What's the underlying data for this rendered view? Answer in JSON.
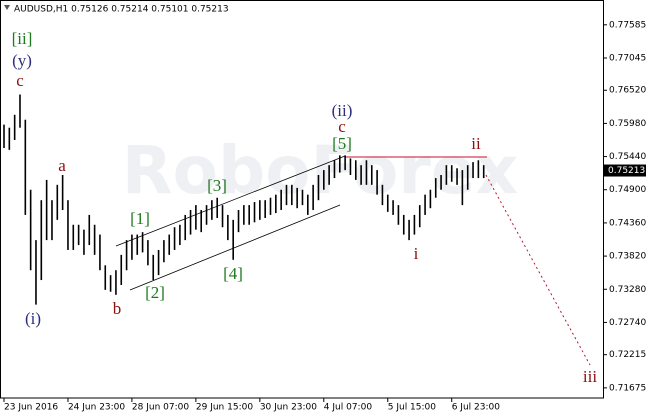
{
  "chart_data": {
    "type": "ohlc",
    "header": "AUDUSD,H1  0.75126 0.75214 0.75101 0.75213",
    "watermark": "RoboForex",
    "bar_color": "#000000",
    "ylim": [
      0.7794,
      0.7151
    ],
    "yticks": [
      0.77585,
      0.77045,
      {
        "value": 0.7652,
        "label": "0.76520"
      },
      {
        "value": 0.7598,
        "label": "0.75980"
      },
      {
        "value": 0.7544,
        "label": "0.75440"
      },
      {
        "value": 0.749,
        "label": "0.74900"
      },
      {
        "value": 0.7436,
        "label": "0.74360"
      },
      {
        "value": 0.7382,
        "label": "0.73820"
      },
      {
        "value": 0.7328,
        "label": "0.73280"
      },
      {
        "value": 0.7274,
        "label": "0.72740"
      },
      0.72215,
      0.71675
    ],
    "last_price": 0.75213,
    "categories": [
      "23 Jun 2016",
      null,
      null,
      null,
      null,
      null,
      null,
      null,
      null,
      null,
      null,
      null,
      "24 Jun 23:00",
      null,
      null,
      null,
      null,
      null,
      null,
      null,
      null,
      null,
      null,
      null,
      "28 Jun 07:00",
      null,
      null,
      null,
      null,
      null,
      null,
      null,
      null,
      null,
      null,
      null,
      "29 Jun 15:00",
      null,
      null,
      null,
      null,
      null,
      null,
      null,
      null,
      null,
      null,
      null,
      "30 Jun 23:00",
      null,
      null,
      null,
      null,
      null,
      null,
      null,
      null,
      null,
      null,
      null,
      "4 Jul 07:00",
      null,
      null,
      null,
      null,
      null,
      null,
      null,
      null,
      null,
      null,
      null,
      "5 Jul 15:00",
      null,
      null,
      null,
      null,
      null,
      null,
      null,
      null,
      null,
      null,
      null,
      "6 Jul 23:00",
      null,
      null,
      null,
      null,
      null,
      null
    ],
    "high": [
      0.7596,
      0.7591,
      0.7612,
      0.7645,
      0.7604,
      0.749,
      0.7408,
      0.7473,
      0.7506,
      0.7473,
      0.7498,
      0.7514,
      0.7473,
      0.7433,
      0.7433,
      0.7425,
      0.7449,
      0.7433,
      0.7417,
      0.7367,
      0.7351,
      0.7359,
      0.7384,
      0.7408,
      0.7417,
      0.7417,
      0.7421,
      0.7408,
      0.7384,
      0.7392,
      0.7408,
      0.7417,
      0.7429,
      0.7433,
      0.7449,
      0.7457,
      0.7465,
      0.7457,
      0.7465,
      0.7473,
      0.7477,
      0.7465,
      0.7449,
      0.7441,
      0.7457,
      0.7465,
      0.7465,
      0.747,
      0.7473,
      0.7473,
      0.7477,
      0.7482,
      0.749,
      0.7498,
      0.7498,
      0.7493,
      0.749,
      0.7482,
      0.7498,
      0.7514,
      0.7522,
      0.753,
      0.7538,
      0.7546,
      0.7546,
      0.7541,
      0.7538,
      0.753,
      0.7538,
      0.753,
      0.7522,
      0.7498,
      0.7482,
      0.7473,
      0.7465,
      0.7449,
      0.7441,
      0.7449,
      0.7465,
      0.7482,
      0.749,
      0.7509,
      0.7514,
      0.753,
      0.753,
      0.7525,
      0.7522,
      0.753,
      0.7535,
      0.7538,
      0.753
    ],
    "low": [
      0.7558,
      0.7555,
      0.7571,
      0.7591,
      0.7449,
      0.7359,
      0.7303,
      0.7343,
      0.7408,
      0.7408,
      0.7441,
      0.7457,
      0.7392,
      0.7392,
      0.74,
      0.7384,
      0.74,
      0.7384,
      0.7359,
      0.7327,
      0.7324,
      0.7319,
      0.7335,
      0.7359,
      0.7376,
      0.7384,
      0.7388,
      0.7367,
      0.7343,
      0.7351,
      0.7372,
      0.7384,
      0.7392,
      0.74,
      0.7408,
      0.7417,
      0.7425,
      0.7421,
      0.7433,
      0.7441,
      0.7444,
      0.7429,
      0.7408,
      0.7376,
      0.7421,
      0.7433,
      0.7433,
      0.7437,
      0.7441,
      0.7444,
      0.7449,
      0.7452,
      0.7457,
      0.7465,
      0.7465,
      0.746,
      0.7465,
      0.7449,
      0.7457,
      0.7473,
      0.749,
      0.7498,
      0.7509,
      0.7518,
      0.7522,
      0.7514,
      0.7506,
      0.7498,
      0.7498,
      0.7498,
      0.7482,
      0.7465,
      0.7454,
      0.7449,
      0.7433,
      0.7417,
      0.7408,
      0.7417,
      0.7429,
      0.7449,
      0.746,
      0.7477,
      0.749,
      0.7498,
      0.7503,
      0.7498,
      0.7465,
      0.749,
      0.7509,
      0.7509,
      0.7509
    ],
    "annotations": [
      {
        "text": "[ii]",
        "color": "#1f7a1f"
      },
      {
        "text": "(y)",
        "color": "#2b2f7a"
      },
      {
        "text": "c",
        "color": "#8b1010"
      },
      {
        "text": "a",
        "color": "#8b1010"
      },
      {
        "text": "(i)",
        "color": "#2b2f7a"
      },
      {
        "text": "b",
        "color": "#8b1010"
      },
      {
        "text": "[1]",
        "color": "#1f7a1f"
      },
      {
        "text": "[2]",
        "color": "#1f7a1f"
      },
      {
        "text": "[3]",
        "color": "#1f7a1f"
      },
      {
        "text": "[4]",
        "color": "#1f7a1f"
      },
      {
        "text": "(ii)",
        "color": "#2b2f7a"
      },
      {
        "text": "c",
        "color": "#8b1010"
      },
      {
        "text": "[5]",
        "color": "#1f7a1f"
      },
      {
        "text": "ii",
        "color": "#8b1010"
      },
      {
        "text": "i",
        "color": "#8b1010"
      },
      {
        "text": "iii",
        "color": "#8b1010"
      }
    ]
  }
}
